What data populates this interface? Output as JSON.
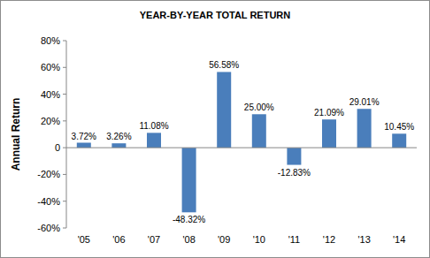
{
  "chart_data": {
    "type": "bar",
    "title": "YEAR-BY-YEAR TOTAL RETURN",
    "y_label": "Annual Return",
    "categories": [
      "'05",
      "'06",
      "'07",
      "'08",
      "'09",
      "'10",
      "'11",
      "'12",
      "'13",
      "'14"
    ],
    "values": [
      3.72,
      3.26,
      11.08,
      -48.32,
      56.58,
      25.0,
      -12.83,
      21.09,
      29.01,
      10.45
    ],
    "value_labels": [
      "3.72%",
      "3.26%",
      "11.08%",
      "-48.32%",
      "56.58%",
      "25.00%",
      "-12.83%",
      "21.09%",
      "29.01%",
      "10.45%"
    ],
    "color": "#4a7ebb",
    "ylim": [
      -60,
      80
    ],
    "yticks": [
      {
        "value": -60,
        "label": "-60%"
      },
      {
        "value": -40,
        "label": "-40%"
      },
      {
        "value": -20,
        "label": "-20%"
      },
      {
        "value": 0,
        "label": "0"
      },
      {
        "value": 20,
        "label": "20%"
      },
      {
        "value": 40,
        "label": "40%"
      },
      {
        "value": 60,
        "label": "60%"
      },
      {
        "value": 80,
        "label": "80%"
      }
    ],
    "grid": false,
    "data_labels": true
  }
}
